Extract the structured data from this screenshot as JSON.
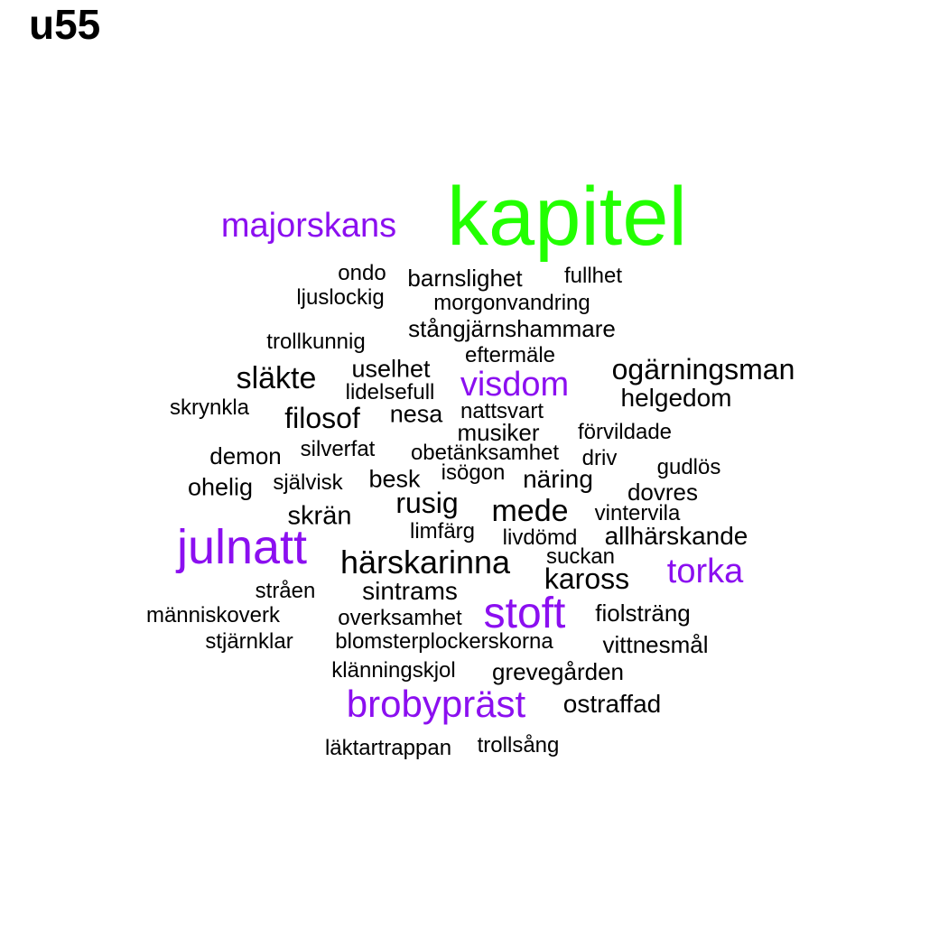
{
  "title": "u55",
  "colors": {
    "black": "#000000",
    "purple": "#8b0ff0",
    "green": "#22ff00"
  },
  "words": [
    {
      "text": "kapitel",
      "color": "green"
    },
    {
      "text": "majorskans",
      "color": "purple"
    },
    {
      "text": "ondo",
      "color": "black"
    },
    {
      "text": "barnslighet",
      "color": "black"
    },
    {
      "text": "fullhet",
      "color": "black"
    },
    {
      "text": "ljuslockig",
      "color": "black"
    },
    {
      "text": "morgonvandring",
      "color": "black"
    },
    {
      "text": "stångjärnshammare",
      "color": "black"
    },
    {
      "text": "trollkunnig",
      "color": "black"
    },
    {
      "text": "eftermäle",
      "color": "black"
    },
    {
      "text": "släkte",
      "color": "black"
    },
    {
      "text": "uselhet",
      "color": "black"
    },
    {
      "text": "visdom",
      "color": "purple"
    },
    {
      "text": "ogärningsman",
      "color": "black"
    },
    {
      "text": "lidelsefull",
      "color": "black"
    },
    {
      "text": "helgedom",
      "color": "black"
    },
    {
      "text": "skrynkla",
      "color": "black"
    },
    {
      "text": "filosof",
      "color": "black"
    },
    {
      "text": "nesa",
      "color": "black"
    },
    {
      "text": "nattsvart",
      "color": "black"
    },
    {
      "text": "musiker",
      "color": "black"
    },
    {
      "text": "förvildade",
      "color": "black"
    },
    {
      "text": "demon",
      "color": "black"
    },
    {
      "text": "silverfat",
      "color": "black"
    },
    {
      "text": "obetänksamhet",
      "color": "black"
    },
    {
      "text": "driv",
      "color": "black"
    },
    {
      "text": "gudlös",
      "color": "black"
    },
    {
      "text": "ohelig",
      "color": "black"
    },
    {
      "text": "självisk",
      "color": "black"
    },
    {
      "text": "besk",
      "color": "black"
    },
    {
      "text": "isögon",
      "color": "black"
    },
    {
      "text": "näring",
      "color": "black"
    },
    {
      "text": "dovres",
      "color": "black"
    },
    {
      "text": "rusig",
      "color": "black"
    },
    {
      "text": "mede",
      "color": "black"
    },
    {
      "text": "skrän",
      "color": "black"
    },
    {
      "text": "vintervila",
      "color": "black"
    },
    {
      "text": "limfärg",
      "color": "black"
    },
    {
      "text": "livdömd",
      "color": "black"
    },
    {
      "text": "allhärskande",
      "color": "black"
    },
    {
      "text": "julnatt",
      "color": "purple"
    },
    {
      "text": "suckan",
      "color": "black"
    },
    {
      "text": "härskarinna",
      "color": "black"
    },
    {
      "text": "torka",
      "color": "purple"
    },
    {
      "text": "kaross",
      "color": "black"
    },
    {
      "text": "stråen",
      "color": "black"
    },
    {
      "text": "sintrams",
      "color": "black"
    },
    {
      "text": "stoft",
      "color": "purple"
    },
    {
      "text": "fiolsträng",
      "color": "black"
    },
    {
      "text": "människoverk",
      "color": "black"
    },
    {
      "text": "overksamhet",
      "color": "black"
    },
    {
      "text": "stjärnklar",
      "color": "black"
    },
    {
      "text": "blomsterplockerskorna",
      "color": "black"
    },
    {
      "text": "vittnesmål",
      "color": "black"
    },
    {
      "text": "klänningskjol",
      "color": "black"
    },
    {
      "text": "grevegården",
      "color": "black"
    },
    {
      "text": "brobypräst",
      "color": "purple"
    },
    {
      "text": "ostraffad",
      "color": "black"
    },
    {
      "text": "läktartrappan",
      "color": "black"
    },
    {
      "text": "trollsång",
      "color": "black"
    }
  ]
}
